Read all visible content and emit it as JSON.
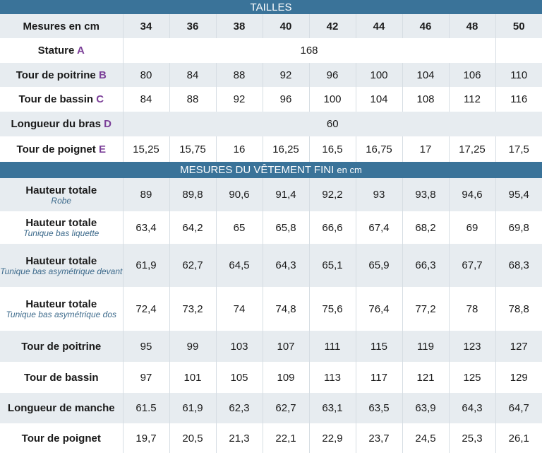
{
  "sizes_title": "TAILLES",
  "header_label": "Mesures en cm",
  "sizes": [
    "34",
    "36",
    "38",
    "40",
    "42",
    "44",
    "46",
    "48",
    "50"
  ],
  "body_rows": [
    {
      "label": "Stature",
      "letter": "A",
      "span_value": "168",
      "span_cols": 8
    },
    {
      "label": "Tour de poitrine",
      "letter": "B",
      "values": [
        "80",
        "84",
        "88",
        "92",
        "96",
        "100",
        "104",
        "106",
        "110"
      ]
    },
    {
      "label": "Tour de bassin",
      "letter": "C",
      "values": [
        "84",
        "88",
        "92",
        "96",
        "100",
        "104",
        "108",
        "112",
        "116"
      ]
    },
    {
      "label": "Longueur du bras ",
      "letter": "D",
      "span_value": "60",
      "span_cols": 9
    },
    {
      "label": "Tour de poignet",
      "letter": "E",
      "values": [
        "15,25",
        "15,75",
        "16",
        "16,25",
        "16,5",
        "16,75",
        "17",
        "17,25",
        "17,5"
      ]
    }
  ],
  "finished_title": "MESURES DU VÊTEMENT FINI",
  "finished_unit": "en cm",
  "finished_rows": [
    {
      "label": "Hauteur totale",
      "sub": "Robe",
      "values": [
        "89",
        "89,8",
        "90,6",
        "91,4",
        "92,2",
        "93",
        "93,8",
        "94,6",
        "95,4"
      ]
    },
    {
      "label": "Hauteur totale",
      "sub": "Tunique bas liquette",
      "values": [
        "63,4",
        "64,2",
        "65",
        "65,8",
        "66,6",
        "67,4",
        "68,2",
        "69",
        "69,8"
      ]
    },
    {
      "label": "Hauteur totale",
      "sub": "Tunique bas asymétrique devant",
      "values": [
        "61,9",
        "62,7",
        "64,5",
        "64,3",
        "65,1",
        "65,9",
        "66,3",
        "67,7",
        "68,3"
      ]
    },
    {
      "label": "Hauteur totale",
      "sub": "Tunique bas asymétrique dos",
      "values": [
        "72,4",
        "73,2",
        "74",
        "74,8",
        "75,6",
        "76,4",
        "77,2",
        "78",
        "78,8"
      ]
    },
    {
      "label": "Tour de poitrine",
      "values": [
        "95",
        "99",
        "103",
        "107",
        "111",
        "115",
        "119",
        "123",
        "127"
      ]
    },
    {
      "label": "Tour de bassin",
      "values": [
        "97",
        "101",
        "105",
        "109",
        "113",
        "117",
        "121",
        "125",
        "129"
      ]
    },
    {
      "label": "Longueur de manche",
      "values": [
        "61.5",
        "61,9",
        "62,3",
        "62,7",
        "63,1",
        "63,5",
        "63,9",
        "64,3",
        "64,7"
      ]
    },
    {
      "label": "Tour de poignet",
      "values": [
        "19,7",
        "20,5",
        "21,3",
        "22,1",
        "22,9",
        "23,7",
        "24,5",
        "25,3",
        "26,1"
      ]
    }
  ],
  "colors": {
    "band": "#3a7399",
    "alt_row": "#e7ecf0",
    "letter": "#7b3f98",
    "subtitle": "#3e6b8c"
  }
}
